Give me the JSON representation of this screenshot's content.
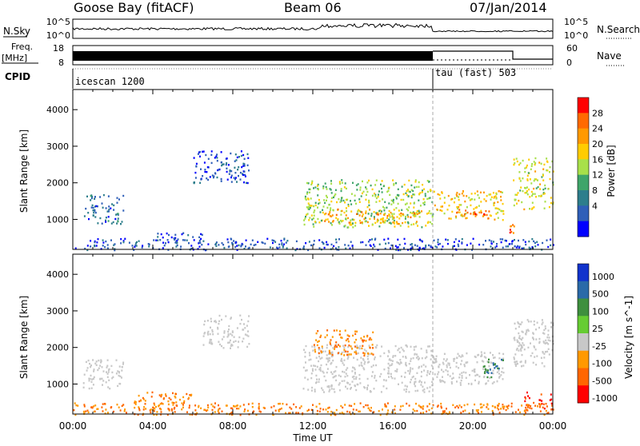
{
  "header": {
    "station": "Goose Bay (fitACF)",
    "beam": "Beam 06",
    "date": "07/Jan/2014"
  },
  "noise_panel": {
    "left_label": "N.Sky",
    "right_label": "N.Search",
    "left_ticks": [
      "10^5",
      "10^0"
    ],
    "right_ticks": [
      "10^5",
      "10^0"
    ]
  },
  "freq_panel": {
    "left_label_1": "Freq.",
    "left_label_2": "[MHz]",
    "left_ticks": [
      "18",
      "8"
    ],
    "right_label": "Nave",
    "right_ticks": [
      "60",
      "0"
    ]
  },
  "cpid_panel": {
    "label": "CPID",
    "modes": [
      {
        "name": "icescan 1200",
        "start_hour": 0
      },
      {
        "name": "tau (fast) 503",
        "start_hour": 18
      }
    ]
  },
  "power_colorbar": {
    "label": "Power [dB]",
    "ticks": [
      "28",
      "24",
      "20",
      "16",
      "12",
      "8",
      "4"
    ],
    "colors": [
      "#ff0000",
      "#ff6a00",
      "#ff9900",
      "#ffcc00",
      "#a8e04a",
      "#3fa56a",
      "#2d7e8c",
      "#2f5fb8",
      "#0000ff"
    ]
  },
  "velocity_colorbar": {
    "label": "Velocity [m s^-1]",
    "ticks": [
      "1000",
      "500",
      "100",
      "25",
      "-25",
      "-100",
      "-500",
      "-1000"
    ],
    "colors": [
      "#1133cc",
      "#2a6aa8",
      "#3e8f3e",
      "#66cc33",
      "#c8c8c8",
      "#ff9900",
      "#ff6600",
      "#ff0000"
    ]
  },
  "x_axis": {
    "label": "Time UT",
    "ticks": [
      "00:00",
      "04:00",
      "08:00",
      "12:00",
      "16:00",
      "20:00",
      "00:00"
    ]
  },
  "y_axis": {
    "label": "Slant Range [km]",
    "ticks": [
      "1000",
      "2000",
      "3000",
      "4000"
    ]
  },
  "chart_data": [
    {
      "type": "heatmap",
      "quantity": "power",
      "x_range_hours": [
        0,
        24
      ],
      "y_range_km": [
        180,
        4550
      ],
      "regions": [
        {
          "t": [
            0.5,
            2.5
          ],
          "r": [
            900,
            1700
          ],
          "value": 8
        },
        {
          "t": [
            4.2,
            6.5
          ],
          "r": [
            350,
            650
          ],
          "value": 6
        },
        {
          "t": [
            6.0,
            8.8
          ],
          "r": [
            2000,
            2900
          ],
          "value": 6
        },
        {
          "t": [
            11.5,
            18.0
          ],
          "r": [
            800,
            2100
          ],
          "value": 16
        },
        {
          "t": [
            12.5,
            17.5
          ],
          "r": [
            900,
            1300
          ],
          "value": 22
        },
        {
          "t": [
            18.0,
            21.5
          ],
          "r": [
            1000,
            1800
          ],
          "value": 20
        },
        {
          "t": [
            19.0,
            20.8
          ],
          "r": [
            1050,
            1300
          ],
          "value": 26
        },
        {
          "t": [
            22.0,
            24.0
          ],
          "r": [
            1300,
            2700
          ],
          "value": 18
        },
        {
          "t": [
            21.8,
            22.4
          ],
          "r": [
            600,
            900
          ],
          "value": 26
        },
        {
          "t": [
            0.0,
            24.0
          ],
          "r": [
            180,
            500
          ],
          "value": 6
        }
      ]
    },
    {
      "type": "heatmap",
      "quantity": "velocity",
      "x_range_hours": [
        0,
        24
      ],
      "y_range_km": [
        180,
        4550
      ],
      "regions": [
        {
          "t": [
            0.5,
            2.5
          ],
          "r": [
            900,
            1700
          ],
          "value": 0
        },
        {
          "t": [
            3.0,
            6.0
          ],
          "r": [
            300,
            800
          ],
          "value": -100
        },
        {
          "t": [
            6.5,
            8.8
          ],
          "r": [
            2000,
            2900
          ],
          "value": 0
        },
        {
          "t": [
            11.5,
            18.0
          ],
          "r": [
            800,
            2100
          ],
          "value": 0
        },
        {
          "t": [
            12.0,
            15.0
          ],
          "r": [
            1800,
            2500
          ],
          "value": -100
        },
        {
          "t": [
            18.0,
            21.5
          ],
          "r": [
            1000,
            1900
          ],
          "value": 0
        },
        {
          "t": [
            20.5,
            21.5
          ],
          "r": [
            1200,
            1700
          ],
          "value": 100
        },
        {
          "t": [
            22.0,
            24.0
          ],
          "r": [
            1500,
            2800
          ],
          "value": 0
        },
        {
          "t": [
            22.5,
            24.0
          ],
          "r": [
            300,
            800
          ],
          "value": -500
        },
        {
          "t": [
            0.0,
            24.0
          ],
          "r": [
            180,
            500
          ],
          "value": -100
        }
      ]
    }
  ]
}
